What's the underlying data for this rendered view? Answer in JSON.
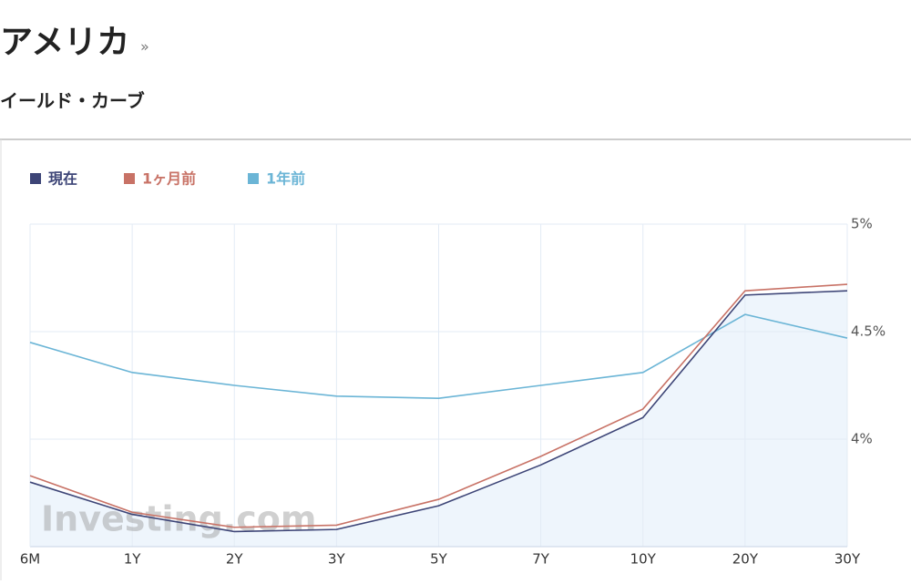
{
  "header": {
    "title": "アメリカ",
    "more": "»",
    "subtitle": "イールド・カーブ"
  },
  "chart_data": {
    "type": "line",
    "categories": [
      "6M",
      "1Y",
      "2Y",
      "3Y",
      "5Y",
      "7Y",
      "10Y",
      "20Y",
      "30Y"
    ],
    "series": [
      {
        "name": "現在",
        "color": "#3d4577",
        "values": [
          3.8,
          3.65,
          3.57,
          3.58,
          3.69,
          3.88,
          4.1,
          4.67,
          4.69
        ]
      },
      {
        "name": "1ヶ月前",
        "color": "#c87266",
        "values": [
          3.83,
          3.66,
          3.59,
          3.6,
          3.72,
          3.92,
          4.14,
          4.69,
          4.72
        ]
      },
      {
        "name": "1年前",
        "color": "#6bb5d6",
        "values": [
          4.45,
          4.31,
          4.25,
          4.2,
          4.19,
          4.25,
          4.31,
          4.58,
          4.47
        ]
      }
    ],
    "ylim": [
      3.5,
      5
    ],
    "yticks": [
      {
        "value": 4,
        "label": "4%"
      },
      {
        "value": 4.5,
        "label": "4.5%"
      },
      {
        "value": 5,
        "label": "5%"
      }
    ],
    "grid": true,
    "legend": "top-left",
    "area_fill": "#eef5fc",
    "watermark": "Investing.com"
  }
}
